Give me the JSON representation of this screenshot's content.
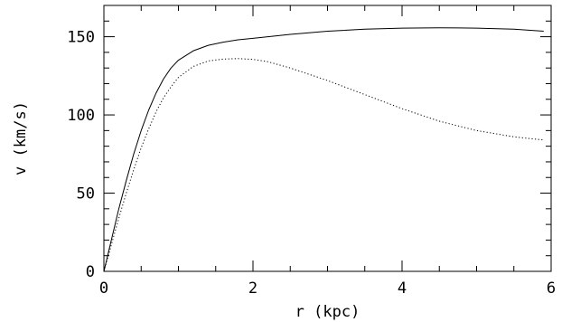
{
  "chart_data": {
    "type": "line",
    "title": "",
    "xlabel": "r (kpc)",
    "ylabel": "v (km/s)",
    "xlim": [
      0,
      6
    ],
    "ylim": [
      0,
      170
    ],
    "grid": false,
    "legend": "none",
    "x_ticks": [
      {
        "value": 0,
        "label": "0"
      },
      {
        "value": 2,
        "label": "2"
      },
      {
        "value": 4,
        "label": "4"
      },
      {
        "value": 6,
        "label": "6"
      }
    ],
    "y_ticks": [
      {
        "value": 0,
        "label": "0"
      },
      {
        "value": 50,
        "label": "50"
      },
      {
        "value": 100,
        "label": "100"
      },
      {
        "value": 150,
        "label": "150"
      }
    ],
    "series": [
      {
        "style": "solid",
        "color": "#000000",
        "points": [
          [
            0.0,
            0
          ],
          [
            0.1,
            20
          ],
          [
            0.2,
            40
          ],
          [
            0.3,
            58
          ],
          [
            0.4,
            75
          ],
          [
            0.5,
            90
          ],
          [
            0.6,
            103
          ],
          [
            0.7,
            114
          ],
          [
            0.8,
            123
          ],
          [
            0.9,
            130
          ],
          [
            1.0,
            135
          ],
          [
            1.2,
            141
          ],
          [
            1.4,
            144.5
          ],
          [
            1.6,
            146.5
          ],
          [
            1.8,
            148
          ],
          [
            2.0,
            149
          ],
          [
            2.5,
            151.5
          ],
          [
            3.0,
            153.5
          ],
          [
            3.5,
            154.8
          ],
          [
            4.0,
            155.5
          ],
          [
            4.5,
            155.7
          ],
          [
            5.0,
            155.5
          ],
          [
            5.5,
            154.8
          ],
          [
            5.9,
            153.5
          ]
        ]
      },
      {
        "style": "dotted",
        "color": "#000000",
        "points": [
          [
            0.0,
            0
          ],
          [
            0.1,
            17
          ],
          [
            0.2,
            34
          ],
          [
            0.3,
            50
          ],
          [
            0.4,
            65
          ],
          [
            0.5,
            79
          ],
          [
            0.6,
            91
          ],
          [
            0.7,
            102
          ],
          [
            0.8,
            111
          ],
          [
            0.9,
            118
          ],
          [
            1.0,
            124
          ],
          [
            1.2,
            131
          ],
          [
            1.4,
            134.5
          ],
          [
            1.6,
            135.7
          ],
          [
            1.8,
            136
          ],
          [
            2.0,
            135.5
          ],
          [
            2.2,
            134
          ],
          [
            2.5,
            130
          ],
          [
            3.0,
            122
          ],
          [
            3.5,
            113
          ],
          [
            4.0,
            104
          ],
          [
            4.5,
            96
          ],
          [
            5.0,
            90
          ],
          [
            5.5,
            86
          ],
          [
            5.9,
            84
          ]
        ]
      }
    ]
  }
}
